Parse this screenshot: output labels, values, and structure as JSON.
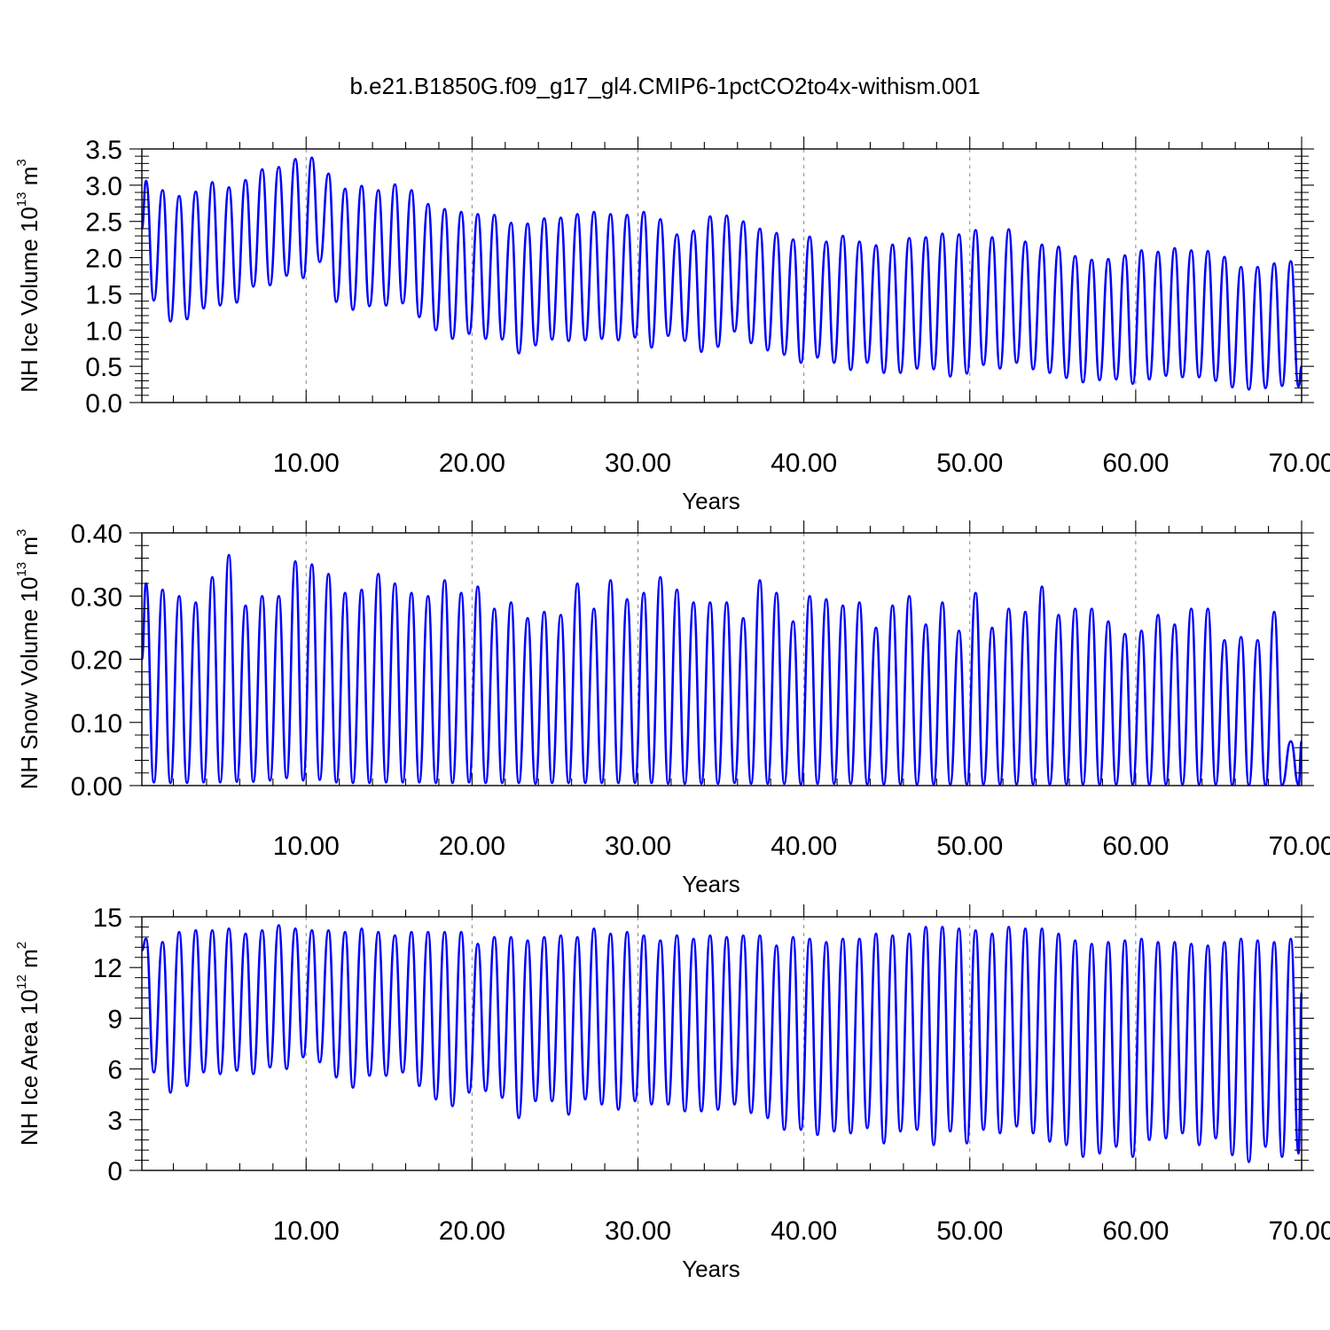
{
  "title": "b.e21.B1850G.f09_g17_gl4.CMIP6-1pctCO2to4x-withism.001",
  "colors": {
    "series": "#0000ff",
    "axis": "#000000",
    "grid": "#888888"
  },
  "chart_data": [
    {
      "type": "line",
      "name": "nh-ice-volume",
      "ylabel": {
        "prefix": "NH Ice Volume 10",
        "exp": "13",
        "unit": " m",
        "unit_exp": "3"
      },
      "xlabel": "Years",
      "xlim": [
        0.1,
        70
      ],
      "ylim": [
        0,
        3.5
      ],
      "xticks": [
        10,
        20,
        30,
        40,
        50,
        60,
        70
      ],
      "xtick_labels": [
        "10.00",
        "20.00",
        "30.00",
        "40.00",
        "50.00",
        "60.00",
        "70.00"
      ],
      "yticks": [
        0,
        0.5,
        1.0,
        1.5,
        2.0,
        2.5,
        3.0,
        3.5
      ],
      "ytick_labels": [
        "0.0",
        "0.5",
        "1.0",
        "1.5",
        "2.0",
        "2.5",
        "3.0",
        "3.5"
      ],
      "grid": "vertical-dashed-at-major-x",
      "start": 2.4,
      "end": 0.5,
      "max": [
        3.06,
        2.93,
        2.85,
        2.91,
        3.04,
        2.97,
        3.07,
        3.22,
        3.25,
        3.36,
        3.38,
        3.16,
        2.95,
        2.99,
        2.93,
        3.01,
        2.93,
        2.74,
        2.67,
        2.63,
        2.6,
        2.59,
        2.48,
        2.47,
        2.54,
        2.55,
        2.6,
        2.63,
        2.6,
        2.59,
        2.63,
        2.53,
        2.32,
        2.37,
        2.57,
        2.58,
        2.5,
        2.4,
        2.34,
        2.25,
        2.29,
        2.22,
        2.3,
        2.22,
        2.17,
        2.18,
        2.27,
        2.28,
        2.33,
        2.32,
        2.38,
        2.28,
        2.39,
        2.22,
        2.18,
        2.15,
        2.02,
        1.97,
        1.98,
        2.03,
        2.1,
        2.08,
        2.13,
        2.1,
        2.09,
        2.01,
        1.87,
        1.87,
        1.92,
        1.95
      ],
      "min": [
        1.41,
        1.12,
        1.15,
        1.3,
        1.34,
        1.38,
        1.6,
        1.62,
        1.75,
        1.72,
        1.94,
        1.39,
        1.28,
        1.33,
        1.34,
        1.37,
        1.18,
        1.0,
        0.88,
        0.95,
        0.88,
        0.87,
        0.68,
        0.79,
        0.87,
        0.85,
        0.86,
        0.88,
        0.86,
        0.9,
        0.76,
        0.92,
        0.85,
        0.7,
        0.77,
        0.98,
        0.82,
        0.72,
        0.66,
        0.55,
        0.62,
        0.55,
        0.45,
        0.55,
        0.41,
        0.41,
        0.47,
        0.46,
        0.36,
        0.4,
        0.52,
        0.47,
        0.55,
        0.46,
        0.41,
        0.34,
        0.28,
        0.31,
        0.32,
        0.26,
        0.32,
        0.37,
        0.35,
        0.35,
        0.3,
        0.21,
        0.18,
        0.2,
        0.23,
        0.22
      ]
    },
    {
      "type": "line",
      "name": "nh-snow-volume",
      "ylabel": {
        "prefix": "NH Snow Volume 10",
        "exp": "13",
        "unit": " m",
        "unit_exp": "3"
      },
      "xlabel": "Years",
      "xlim": [
        0.1,
        70
      ],
      "ylim": [
        0,
        0.4
      ],
      "xticks": [
        10,
        20,
        30,
        40,
        50,
        60,
        70
      ],
      "xtick_labels": [
        "10.00",
        "20.00",
        "30.00",
        "40.00",
        "50.00",
        "60.00",
        "70.00"
      ],
      "yticks": [
        0,
        0.1,
        0.2,
        0.3,
        0.4
      ],
      "ytick_labels": [
        "0.00",
        "0.10",
        "0.20",
        "0.30",
        "0.40"
      ],
      "grid": "vertical-dashed-at-major-x",
      "start": 0.2,
      "end": 0.07,
      "max": [
        0.32,
        0.31,
        0.3,
        0.29,
        0.33,
        0.365,
        0.285,
        0.3,
        0.3,
        0.355,
        0.35,
        0.335,
        0.305,
        0.31,
        0.335,
        0.32,
        0.305,
        0.3,
        0.325,
        0.305,
        0.315,
        0.28,
        0.29,
        0.265,
        0.275,
        0.27,
        0.32,
        0.28,
        0.325,
        0.295,
        0.305,
        0.33,
        0.31,
        0.29,
        0.29,
        0.29,
        0.265,
        0.325,
        0.305,
        0.26,
        0.3,
        0.295,
        0.285,
        0.29,
        0.25,
        0.285,
        0.3,
        0.255,
        0.29,
        0.245,
        0.305,
        0.25,
        0.28,
        0.275,
        0.315,
        0.27,
        0.28,
        0.28,
        0.26,
        0.24,
        0.245,
        0.27,
        0.255,
        0.28,
        0.28,
        0.23,
        0.235,
        0.23,
        0.275,
        0.07
      ],
      "min": [
        0.005,
        0.004,
        0.004,
        0.005,
        0.005,
        0.006,
        0.006,
        0.008,
        0.012,
        0.008,
        0.009,
        0.005,
        0.004,
        0.004,
        0.005,
        0.005,
        0.005,
        0.004,
        0.004,
        0.005,
        0.004,
        0.004,
        0.004,
        0.003,
        0.004,
        0.004,
        0.004,
        0.004,
        0.004,
        0.004,
        0.004,
        0.003,
        0.003,
        0.003,
        0.003,
        0.004,
        0.003,
        0.003,
        0.003,
        0.002,
        0.003,
        0.003,
        0.003,
        0.002,
        0.002,
        0.002,
        0.002,
        0.002,
        0.002,
        0.002,
        0.002,
        0.002,
        0.002,
        0.002,
        0.002,
        0.002,
        0.002,
        0.002,
        0.002,
        0.002,
        0.002,
        0.002,
        0.002,
        0.002,
        0.002,
        0.001,
        0.001,
        0.001,
        0.001,
        0.001
      ]
    },
    {
      "type": "line",
      "name": "nh-ice-area",
      "ylabel": {
        "prefix": "NH Ice Area 10",
        "exp": "12",
        "unit": " m",
        "unit_exp": "2"
      },
      "xlabel": "Years",
      "xlim": [
        0.1,
        70
      ],
      "ylim": [
        0,
        15
      ],
      "xticks": [
        10,
        20,
        30,
        40,
        50,
        60,
        70
      ],
      "xtick_labels": [
        "10.00",
        "20.00",
        "30.00",
        "40.00",
        "50.00",
        "60.00",
        "70.00"
      ],
      "yticks": [
        0,
        3,
        6,
        9,
        12,
        15
      ],
      "ytick_labels": [
        "0",
        "3",
        "6",
        "9",
        "12",
        "15"
      ],
      "grid": "vertical-dashed-at-major-x",
      "start": 13.0,
      "end": 10.5,
      "max": [
        13.7,
        13.5,
        14.1,
        14.2,
        14.2,
        14.3,
        14.0,
        14.2,
        14.5,
        14.3,
        14.2,
        14.2,
        14.1,
        14.3,
        14.1,
        13.9,
        14.1,
        14.1,
        14.1,
        14.1,
        13.4,
        13.8,
        13.8,
        13.6,
        13.8,
        13.9,
        13.8,
        14.3,
        14.0,
        14.1,
        13.9,
        13.6,
        13.9,
        13.7,
        13.9,
        13.8,
        13.9,
        13.9,
        13.3,
        13.8,
        13.7,
        13.5,
        13.7,
        13.7,
        14.0,
        13.9,
        14.0,
        14.4,
        14.4,
        14.3,
        14.2,
        14.0,
        14.4,
        14.3,
        14.3,
        14.0,
        13.6,
        13.4,
        13.5,
        13.6,
        13.7,
        13.5,
        13.5,
        13.4,
        13.3,
        13.5,
        13.7,
        13.6,
        13.5,
        13.7
      ],
      "min": [
        5.8,
        4.6,
        5.0,
        5.8,
        5.7,
        5.9,
        5.7,
        6.1,
        6.0,
        6.7,
        6.4,
        5.5,
        4.9,
        5.6,
        5.6,
        5.8,
        5.0,
        4.2,
        3.8,
        4.6,
        4.7,
        4.3,
        3.1,
        4.1,
        4.1,
        3.3,
        4.2,
        3.9,
        3.6,
        4.1,
        3.9,
        3.9,
        3.5,
        3.5,
        3.6,
        3.9,
        3.4,
        3.1,
        2.4,
        2.4,
        2.1,
        2.3,
        2.2,
        2.5,
        1.6,
        2.3,
        2.4,
        1.5,
        2.3,
        1.6,
        2.4,
        2.2,
        2.6,
        2.2,
        1.7,
        1.5,
        0.8,
        1.0,
        1.4,
        0.8,
        1.8,
        1.9,
        2.2,
        1.5,
        1.9,
        0.9,
        0.5,
        1.4,
        0.8,
        1.0
      ]
    }
  ]
}
